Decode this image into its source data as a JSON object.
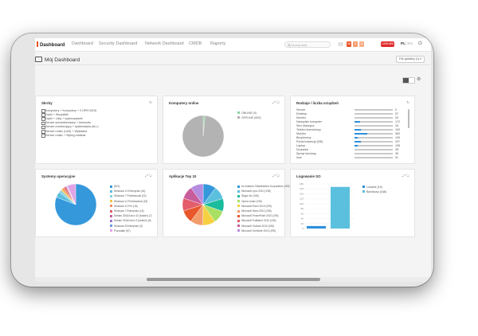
{
  "colors": {
    "accent": "#e8572b",
    "blue": "#2d8fdb",
    "red": "#e02b2b"
  },
  "nav": {
    "brand": "Dashboard",
    "items": [
      "Dashboard",
      "Security Dashboard",
      "Network Dashboard",
      "CMDB",
      "Raporty"
    ]
  },
  "search": {
    "placeholder": "Szukaj tekst"
  },
  "badges": [
    "26",
    "3",
    "0"
  ],
  "user": "LUWUWA",
  "lang": {
    "active": "PL",
    "other": "| EN"
  },
  "page": {
    "title": "Mój Dashboard",
    "dropdown": "Filtr globalny (1) ▾"
  },
  "cards": {
    "skrotu": {
      "title": "Skróty",
      "items": [
        "Komputery + Komputery + 0 OPIS IDDD",
        "Dyski + Wszystkie",
        "Dyski + Listy + wykorzystanie",
        "Serwer scentralizowany + Automatu",
        "Serwer monitorujący + systematyka (ALL)",
        "Serwer rodzic (LAN) + Wykładka",
        "Serwer rodzic + Wykryj zadania"
      ]
    },
    "online": {
      "title": "Komputery online",
      "legend": [
        "ONLINE (9)",
        "OFFLINE (602)"
      ]
    },
    "rodzaje": {
      "title": "Rodzaje / liczba urządzeń",
      "items": [
        {
          "label": "Serwer",
          "value": "0",
          "fill": 0.0
        },
        {
          "label": "Desktop",
          "value": "57",
          "fill": 0.0
        },
        {
          "label": "Monitor",
          "value": "25",
          "fill": 0.0
        },
        {
          "label": "Narzędzie komputer",
          "value": "172",
          "fill": 0.14
        },
        {
          "label": "Sieć Maszyna",
          "value": "16",
          "fill": 0.0
        },
        {
          "label": "Telefon komórkowy",
          "value": "190",
          "fill": 0.16
        },
        {
          "label": "Monitor",
          "value": "363",
          "fill": 0.33
        },
        {
          "label": "Bezpieczny",
          "value": "109",
          "fill": 0.08
        },
        {
          "label": "Portal Instancja (DB)",
          "value": "207",
          "fill": 0.17
        },
        {
          "label": "Laptop",
          "value": "108",
          "fill": 0.08
        },
        {
          "label": "Drukarka",
          "value": "28",
          "fill": 0.0
        },
        {
          "label": "Sprzęt sieciowy",
          "value": "35",
          "fill": 0.0
        },
        {
          "label": "Inne",
          "value": "51",
          "fill": 0.0
        }
      ]
    },
    "systemy": {
      "title": "Systemy operacyjne",
      "legend": [
        "(813)",
        "Windows 10 Enterprise (43)",
        "Windows 7 Professional (22)",
        "Windows 10 Professional (15)",
        "Windows 10 Pro (15)",
        "Windows 7 Enterprise (15)",
        "Debian GNU/Linux 10 (buster) (7)",
        "Debian GNU/Linux 9 (stretch) (5)",
        "Windows 8 Enterprise (3)",
        "Pozostałe (67)"
      ]
    },
    "aplikacje": {
      "title": "Aplikacje Top 10",
      "legend": [
        "ev-nsfactor. Raiselaketor Korporative (199)",
        "Microsoft Lync 2010 (198)",
        "Skype for (196)",
        "Opera Lister (196)",
        "Microsoft Excel 2010 (195)",
        "Microsoft Word 2010 (195)",
        "Microsoft PowerPoint 2010 (195)",
        "Microsoft Publisher 2010 (195)",
        "Microsoft Outlook 2010 (195)",
        "Microsoft OneNote 2010 (195)"
      ]
    },
    "logowanie": {
      "title": "Logowanie SO",
      "legend": [
        "Lokalne (10)",
        "Barcitowy (168)"
      ],
      "ticks": [
        "180",
        "160",
        "140",
        "120",
        "100",
        "80",
        "60",
        "40",
        "20",
        "0"
      ]
    }
  },
  "chart_data": [
    {
      "type": "pie",
      "title": "Komputery online",
      "categories": [
        "ONLINE",
        "OFFLINE"
      ],
      "values": [
        9,
        602
      ]
    },
    {
      "type": "pie",
      "title": "Systemy operacyjne",
      "categories": [
        "(813)",
        "Windows 10 Enterprise",
        "Windows 7 Professional",
        "Windows 10 Professional",
        "Windows 10 Pro",
        "Windows 7 Enterprise",
        "Debian GNU/Linux 10 (buster)",
        "Debian GNU/Linux 9 (stretch)",
        "Windows 8 Enterprise",
        "Pozostałe"
      ],
      "values": [
        813,
        43,
        22,
        15,
        15,
        15,
        7,
        5,
        3,
        67
      ]
    },
    {
      "type": "pie",
      "title": "Aplikacje Top 10",
      "categories": [
        "ev-nsfactor",
        "Microsoft Lync 2010",
        "Skype for",
        "Opera Lister",
        "Microsoft Excel 2010",
        "Microsoft Word 2010",
        "Microsoft PowerPoint 2010",
        "Microsoft Publisher 2010",
        "Microsoft Outlook 2010",
        "Microsoft OneNote 2010"
      ],
      "values": [
        199,
        198,
        196,
        196,
        195,
        195,
        195,
        195,
        195,
        195
      ]
    },
    {
      "type": "bar",
      "title": "Logowanie SO",
      "categories": [
        "Lokalne",
        "Barcitowy"
      ],
      "values": [
        10,
        168
      ],
      "ylim": [
        0,
        180
      ]
    }
  ]
}
